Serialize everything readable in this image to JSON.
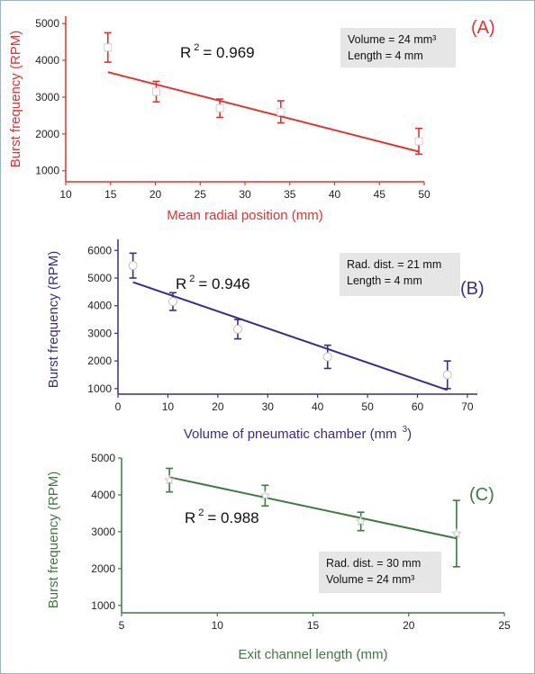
{
  "chart_data": [
    {
      "type": "scatter",
      "panel_label": "(A)",
      "color": "#e8312f",
      "xlabel": "Mean radial position (mm)",
      "ylabel": "Burst frequency (RPM)",
      "xlim": [
        10,
        50
      ],
      "ylim": [
        700,
        5200
      ],
      "xticks": [
        10,
        15,
        20,
        25,
        30,
        35,
        40,
        45,
        50
      ],
      "yticks": [
        1000,
        2000,
        3000,
        4000,
        5000
      ],
      "marker": "square",
      "points": [
        {
          "x": 14.7,
          "y": 4350,
          "err": 400
        },
        {
          "x": 20.1,
          "y": 3150,
          "err": 280
        },
        {
          "x": 27.2,
          "y": 2700,
          "err": 250
        },
        {
          "x": 34.0,
          "y": 2600,
          "err": 300
        },
        {
          "x": 49.4,
          "y": 1800,
          "err": 350
        }
      ],
      "fit": {
        "x1": 14.7,
        "y1": 3680,
        "x2": 49.4,
        "y2": 1520
      },
      "r2_value": "= 0.969",
      "note": [
        "Volume = 24 mm³",
        "Length = 4 mm"
      ]
    },
    {
      "type": "scatter",
      "panel_label": "(B)",
      "color": "#3a2d8a",
      "xlabel": "Volume of pneumatic chamber (mm",
      "xlabel_sup": "3",
      "xlabel_tail": ")",
      "ylabel": "Burst frequency (RPM)",
      "xlim": [
        0,
        72
      ],
      "ylim": [
        800,
        6400
      ],
      "xticks": [
        0,
        10,
        20,
        30,
        40,
        50,
        60,
        70
      ],
      "yticks": [
        1000,
        2000,
        3000,
        4000,
        5000,
        6000
      ],
      "marker": "circle",
      "points": [
        {
          "x": 3.0,
          "y": 5450,
          "err": 450
        },
        {
          "x": 11.0,
          "y": 4150,
          "err": 320
        },
        {
          "x": 24.0,
          "y": 3150,
          "err": 350
        },
        {
          "x": 42.0,
          "y": 2150,
          "err": 420
        },
        {
          "x": 66.0,
          "y": 1500,
          "err": 500
        }
      ],
      "fit": {
        "x1": 3.0,
        "y1": 4850,
        "x2": 66.0,
        "y2": 950
      },
      "r2_value": "= 0.946",
      "note": [
        "Rad. dist. = 21 mm",
        "Length     = 4 mm"
      ]
    },
    {
      "type": "scatter",
      "panel_label": "(C)",
      "color": "#3e7a3e",
      "xlabel": "Exit channel length (mm)",
      "ylabel": "Burst frequency (RPM)",
      "xlim": [
        5,
        25
      ],
      "ylim": [
        800,
        5000
      ],
      "xticks": [
        5,
        10,
        15,
        20,
        25
      ],
      "yticks": [
        1000,
        2000,
        3000,
        4000,
        5000
      ],
      "marker": "star",
      "points": [
        {
          "x": 7.5,
          "y": 4400,
          "err": 320
        },
        {
          "x": 12.5,
          "y": 3980,
          "err": 280
        },
        {
          "x": 17.5,
          "y": 3280,
          "err": 250
        },
        {
          "x": 22.5,
          "y": 2950,
          "err": 900
        }
      ],
      "fit": {
        "x1": 7.5,
        "y1": 4480,
        "x2": 22.5,
        "y2": 2820
      },
      "r2_value": "= 0.988",
      "note": [
        "Rad. dist. = 30 mm",
        "Volume    = 24 mm³"
      ]
    }
  ]
}
